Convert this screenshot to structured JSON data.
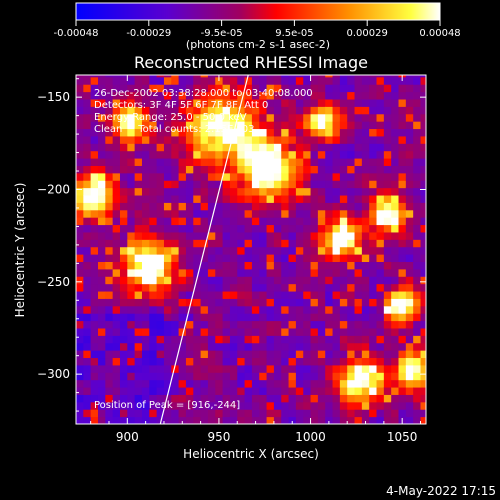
{
  "colorbar": {
    "ticks": [
      "-0.00048",
      "-0.00029",
      "-9.5e-05",
      "9.5e-05",
      "0.00029",
      "0.00048"
    ],
    "unit_label": "(photons cm-2 s-1 asec-2)",
    "range": [
      -0.00048,
      0.00048
    ],
    "colors": [
      "#0000ff",
      "#6000c0",
      "#ff0000",
      "#ff9000",
      "#ffff00",
      "#ffffff"
    ]
  },
  "timestamp": "4-May-2022 17:15",
  "chart_data": {
    "type": "heatmap",
    "title": "Reconstructed RHESSI Image",
    "xlabel": "Heliocentric X (arcsec)",
    "ylabel": "Heliocentric Y (arcsec)",
    "xlim": [
      872,
      1063
    ],
    "ylim": [
      -327,
      -138
    ],
    "x_ticks": [
      900,
      950,
      1000,
      1050
    ],
    "x_tick_labels": [
      "900",
      "950",
      "1000",
      "1050"
    ],
    "y_ticks": [
      -150,
      -200,
      -250,
      -300
    ],
    "y_tick_labels": [
      "−150",
      "−200",
      "−250",
      "−300"
    ],
    "annotations": [
      "26-Dec-2002 03:38:28.000 to 03:40:08.000",
      "Detectors: 3F 4F 5F 6F 7F 8F, Att 0",
      "Energy Range: 25.0 - 50.0 keV",
      "Clean     Total counts: 2.15E+03"
    ],
    "peak_label": "Position of Peak = [916,-244]",
    "peak": [
      916,
      -244
    ],
    "limb_line": [
      [
        918,
        -327
      ],
      [
        966,
        -138
      ]
    ],
    "bright_sources": [
      {
        "x": 950,
        "y": -168,
        "r": 18
      },
      {
        "x": 975,
        "y": -190,
        "r": 16
      },
      {
        "x": 910,
        "y": -243,
        "r": 14
      },
      {
        "x": 1015,
        "y": -228,
        "r": 10
      },
      {
        "x": 1040,
        "y": -215,
        "r": 10
      },
      {
        "x": 1025,
        "y": -305,
        "r": 12
      },
      {
        "x": 1055,
        "y": -300,
        "r": 10
      },
      {
        "x": 880,
        "y": -205,
        "r": 12
      },
      {
        "x": 900,
        "y": -165,
        "r": 10
      },
      {
        "x": 1005,
        "y": -165,
        "r": 9
      },
      {
        "x": 1048,
        "y": -265,
        "r": 9
      }
    ]
  }
}
